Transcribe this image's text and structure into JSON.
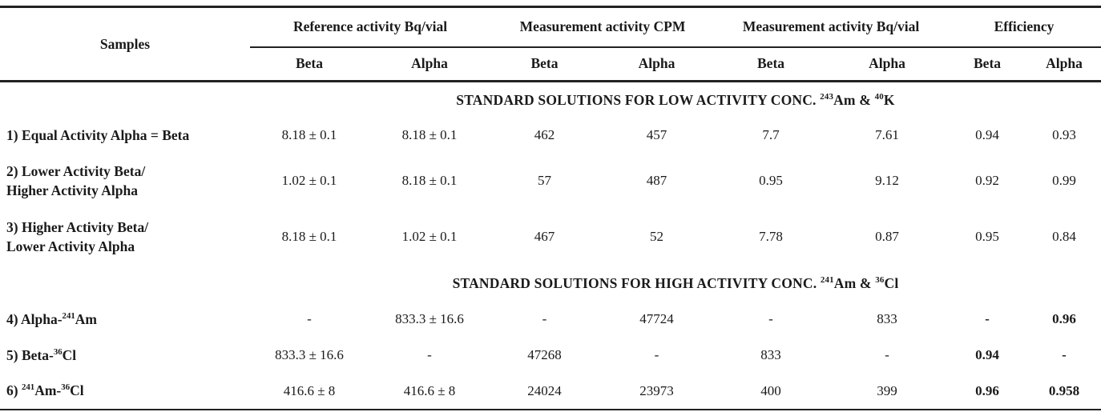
{
  "table": {
    "header": {
      "samples_label": "Samples",
      "groups": [
        {
          "label": "Reference activity Bq/vial",
          "sub": [
            "Beta",
            "Alpha"
          ]
        },
        {
          "label": "Measurement activity CPM",
          "sub": [
            "Beta",
            "Alpha"
          ]
        },
        {
          "label": "Measurement activity Bq/vial",
          "sub": [
            "Beta",
            "Alpha"
          ]
        },
        {
          "label": "Efficiency",
          "sub": [
            "Beta",
            "Alpha"
          ]
        }
      ]
    },
    "sections": [
      {
        "title_segments": [
          {
            "text": "STANDARD SOLUTIONS FOR LOW ACTIVITY CONC. "
          },
          {
            "text": "243",
            "sup": true
          },
          {
            "text": "Am & "
          },
          {
            "text": "40",
            "sup": true
          },
          {
            "text": "K"
          }
        ],
        "rows": [
          {
            "label_segments": [
              {
                "text": "1) Equal Activity Alpha = Beta"
              }
            ],
            "values": [
              "8.18 ± 0.1",
              "8.18 ± 0.1",
              "462",
              "457",
              "7.7",
              "7.61",
              "0.94",
              "0.93"
            ]
          },
          {
            "label_segments": [
              {
                "text": "2) Lower Activity Beta/"
              },
              {
                "br": true
              },
              {
                "text": "Higher Activity Alpha"
              }
            ],
            "values": [
              "1.02 ± 0.1",
              "8.18 ± 0.1",
              "57",
              "487",
              "0.95",
              "9.12",
              "0.92",
              "0.99"
            ]
          },
          {
            "label_segments": [
              {
                "text": "3) Higher Activity Beta/"
              },
              {
                "br": true
              },
              {
                "text": "Lower Activity Alpha"
              }
            ],
            "values": [
              "8.18 ± 0.1",
              "1.02 ± 0.1",
              "467",
              "52",
              "7.78",
              "0.87",
              "0.95",
              "0.84"
            ]
          }
        ]
      },
      {
        "title_segments": [
          {
            "text": "STANDARD SOLUTIONS FOR HIGH ACTIVITY CONC. "
          },
          {
            "text": "241",
            "sup": true
          },
          {
            "text": "Am & "
          },
          {
            "text": "36",
            "sup": true
          },
          {
            "text": "Cl"
          }
        ],
        "rows": [
          {
            "label_segments": [
              {
                "text": "4) Alpha-"
              },
              {
                "text": "241",
                "sup": true
              },
              {
                "text": "Am"
              }
            ],
            "values": [
              "-",
              "833.3 ± 16.6",
              "-",
              "47724",
              "-",
              "833",
              "-",
              "0.96"
            ]
          },
          {
            "label_segments": [
              {
                "text": "5) Beta-"
              },
              {
                "text": "36",
                "sup": true
              },
              {
                "text": "Cl"
              }
            ],
            "values": [
              "833.3 ± 16.6",
              "-",
              "47268",
              "-",
              "833",
              "-",
              "0.94",
              "-"
            ]
          },
          {
            "label_segments": [
              {
                "text": "6) "
              },
              {
                "text": "241",
                "sup": true
              },
              {
                "text": "Am-"
              },
              {
                "text": "36",
                "sup": true
              },
              {
                "text": "Cl"
              }
            ],
            "values": [
              "416.6 ± 8",
              "416.6 ± 8",
              "24024",
              "23973",
              "400",
              "399",
              "0.96",
              "0.958"
            ]
          }
        ]
      }
    ]
  },
  "chart_data": {
    "type": "table",
    "title": "Alpha/Beta activity measurement results",
    "columns": [
      "Samples",
      "Reference activity Bq/vial Beta",
      "Reference activity Bq/vial Alpha",
      "Measurement activity CPM Beta",
      "Measurement activity CPM Alpha",
      "Measurement activity Bq/vial Beta",
      "Measurement activity Bq/vial Alpha",
      "Efficiency Beta",
      "Efficiency Alpha"
    ],
    "rows": [
      [
        "1) Equal Activity Alpha = Beta",
        "8.18 ± 0.1",
        "8.18 ± 0.1",
        "462",
        "457",
        "7.7",
        "7.61",
        "0.94",
        "0.93"
      ],
      [
        "2) Lower Activity Beta/ Higher Activity Alpha",
        "1.02 ± 0.1",
        "8.18 ± 0.1",
        "57",
        "487",
        "0.95",
        "9.12",
        "0.92",
        "0.99"
      ],
      [
        "3) Higher Activity Beta/ Lower Activity Alpha",
        "8.18 ± 0.1",
        "1.02 ± 0.1",
        "467",
        "52",
        "7.78",
        "0.87",
        "0.95",
        "0.84"
      ],
      [
        "4) Alpha-241Am",
        "-",
        "833.3 ± 16.6",
        "-",
        "47724",
        "-",
        "833",
        "-",
        "0.96"
      ],
      [
        "5) Beta-36Cl",
        "833.3 ± 16.6",
        "-",
        "47268",
        "-",
        "833",
        "-",
        "0.94",
        "-"
      ],
      [
        "6) 241Am-36Cl",
        "416.6 ± 8",
        "416.6 ± 8",
        "24024",
        "23973",
        "400",
        "399",
        "0.96",
        "0.958"
      ]
    ],
    "section_headers": [
      "STANDARD SOLUTIONS FOR LOW ACTIVITY CONC. 243Am & 40K",
      "STANDARD SOLUTIONS FOR HIGH ACTIVITY CONC. 241Am & 36Cl"
    ]
  }
}
